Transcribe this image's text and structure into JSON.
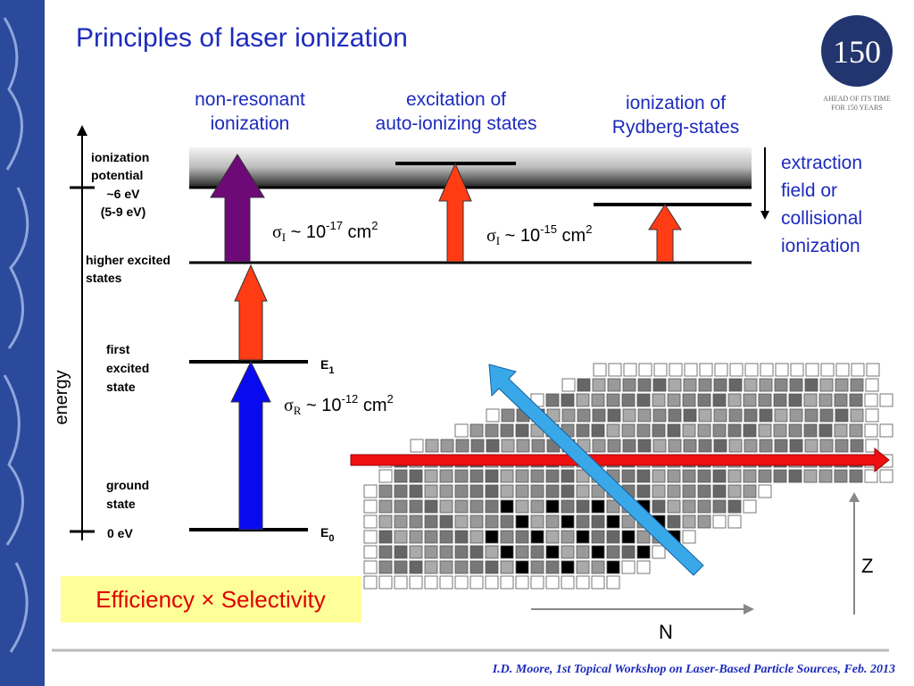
{
  "title": "Principles of laser ionization",
  "logo": {
    "number": "150",
    "tagline": [
      "AHEAD OF ITS TIME",
      "FOR 150 YEARS"
    ]
  },
  "headers": [
    {
      "lines": [
        "non-resonant",
        "ionization"
      ]
    },
    {
      "lines": [
        "excitation of",
        "auto-ionizing states"
      ]
    },
    {
      "lines": [
        "ionization of",
        "Rydberg-states"
      ]
    }
  ],
  "side_note": {
    "lines": [
      "extraction",
      "field or",
      "collisional",
      "ionization"
    ]
  },
  "energy_axis": "energy",
  "level_labels": {
    "ionization_potential": [
      "ionization",
      "potential"
    ],
    "ip_value": "~6 eV",
    "ip_range": "(5-9 eV)",
    "higher_excited": [
      "higher excited",
      "states"
    ],
    "first_excited": [
      "first",
      "excited",
      "state"
    ],
    "ground": [
      "ground",
      "state"
    ],
    "ground_value": "0 eV"
  },
  "level_names": [
    {
      "base": "E",
      "sub": "1"
    },
    {
      "base": "E",
      "sub": "0"
    }
  ],
  "cross_sections": [
    {
      "symbol": "σ",
      "sub": "I",
      "text": " ~ 10",
      "exp": "-17",
      "unit": " cm",
      "unit_exp": "2"
    },
    {
      "symbol": "σ",
      "sub": "I",
      "text": " ~ 10",
      "exp": "-15",
      "unit": " cm",
      "unit_exp": "2"
    },
    {
      "symbol": "σ",
      "sub": "R",
      "text": " ~ 10",
      "exp": "-12",
      "unit": " cm",
      "unit_exp": "2"
    }
  ],
  "summary": "Efficiency × Selectivity",
  "chart_axes": {
    "x": "N",
    "y": "Z"
  },
  "footer": "I.D. Moore, 1st Topical Workshop on Laser-Based Particle Sources, Feb. 2013"
}
